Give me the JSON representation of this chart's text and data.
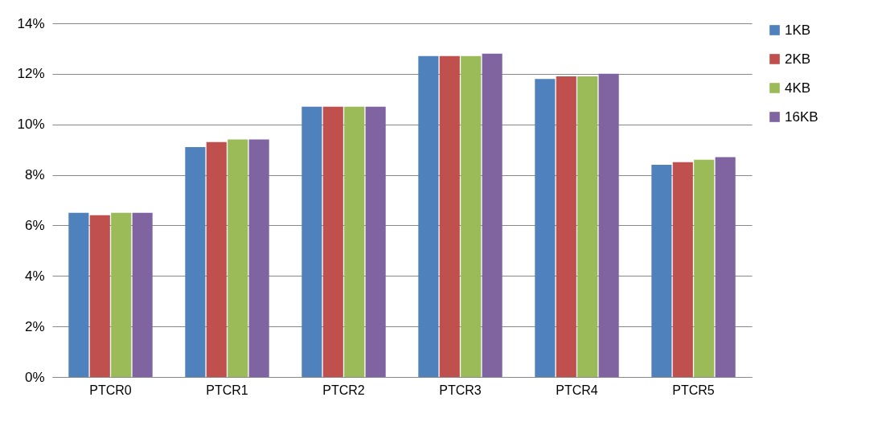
{
  "chart_data": {
    "type": "bar",
    "categories": [
      "PTCR0",
      "PTCR1",
      "PTCR2",
      "PTCR3",
      "PTCR4",
      "PTCR5"
    ],
    "series": [
      {
        "name": "1KB",
        "color": "#4f81bd",
        "values": [
          6.5,
          9.1,
          10.7,
          12.7,
          11.8,
          8.4
        ]
      },
      {
        "name": "2KB",
        "color": "#c0504d",
        "values": [
          6.4,
          9.3,
          10.7,
          12.7,
          11.9,
          8.5
        ]
      },
      {
        "name": "4KB",
        "color": "#9bbb59",
        "values": [
          6.5,
          9.4,
          10.7,
          12.7,
          11.9,
          8.6
        ]
      },
      {
        "name": "16KB",
        "color": "#8064a2",
        "values": [
          6.5,
          9.4,
          10.7,
          12.8,
          12.0,
          8.7
        ]
      }
    ],
    "ylim": [
      0,
      14
    ],
    "yticks": [
      {
        "value": 0,
        "label": "0%"
      },
      {
        "value": 2,
        "label": "2%"
      },
      {
        "value": 4,
        "label": "4%"
      },
      {
        "value": 6,
        "label": "6%"
      },
      {
        "value": 8,
        "label": "8%"
      },
      {
        "value": 10,
        "label": "10%"
      },
      {
        "value": 12,
        "label": "12%"
      },
      {
        "value": 14,
        "label": "14%"
      }
    ],
    "grid": "y",
    "legend": "right"
  }
}
